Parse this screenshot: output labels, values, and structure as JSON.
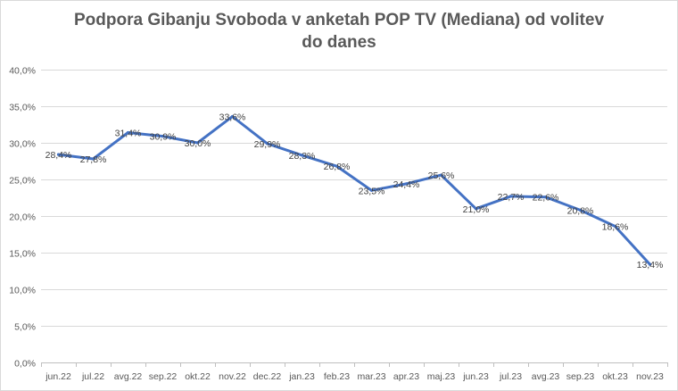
{
  "chart_data": {
    "type": "line",
    "title_lines": [
      "Podpora Gibanju Svoboda v anketah POP TV (Mediana) od volitev",
      "do danes"
    ],
    "categories": [
      "jun.22",
      "jul.22",
      "avg.22",
      "sep.22",
      "okt.22",
      "nov.22",
      "dec.22",
      "jan.23",
      "feb.23",
      "mar.23",
      "apr.23",
      "maj.23",
      "jun.23",
      "jul.23",
      "avg.23",
      "sep.23",
      "okt.23",
      "nov.23"
    ],
    "series": [
      {
        "values": [
          28.4,
          27.8,
          31.4,
          30.9,
          30.0,
          33.6,
          29.9,
          28.3,
          26.8,
          23.5,
          24.4,
          25.6,
          21.0,
          22.7,
          22.6,
          20.8,
          18.6,
          13.4
        ],
        "labels": [
          "28,4%",
          "27,8%",
          "31,4%",
          "30,9%",
          "30,0%",
          "33,6%",
          "29,9%",
          "28,3%",
          "26,8%",
          "23,5%",
          "24,4%",
          "25,6%",
          "21,0%",
          "22,7%",
          "22,6%",
          "20,8%",
          "18,6%",
          "13,4%"
        ],
        "color": "#4472c4"
      }
    ],
    "ylim": [
      0,
      40
    ],
    "yticks": [
      0,
      5,
      10,
      15,
      20,
      25,
      30,
      35,
      40
    ],
    "ytick_labels": [
      "0,0%",
      "5,0%",
      "10,0%",
      "15,0%",
      "20,0%",
      "25,0%",
      "30,0%",
      "35,0%",
      "40,0%"
    ],
    "grid": true,
    "legend": "none",
    "colors": {
      "line": "#4472c4",
      "grid": "#d9d9d9",
      "text": "#595959"
    }
  }
}
